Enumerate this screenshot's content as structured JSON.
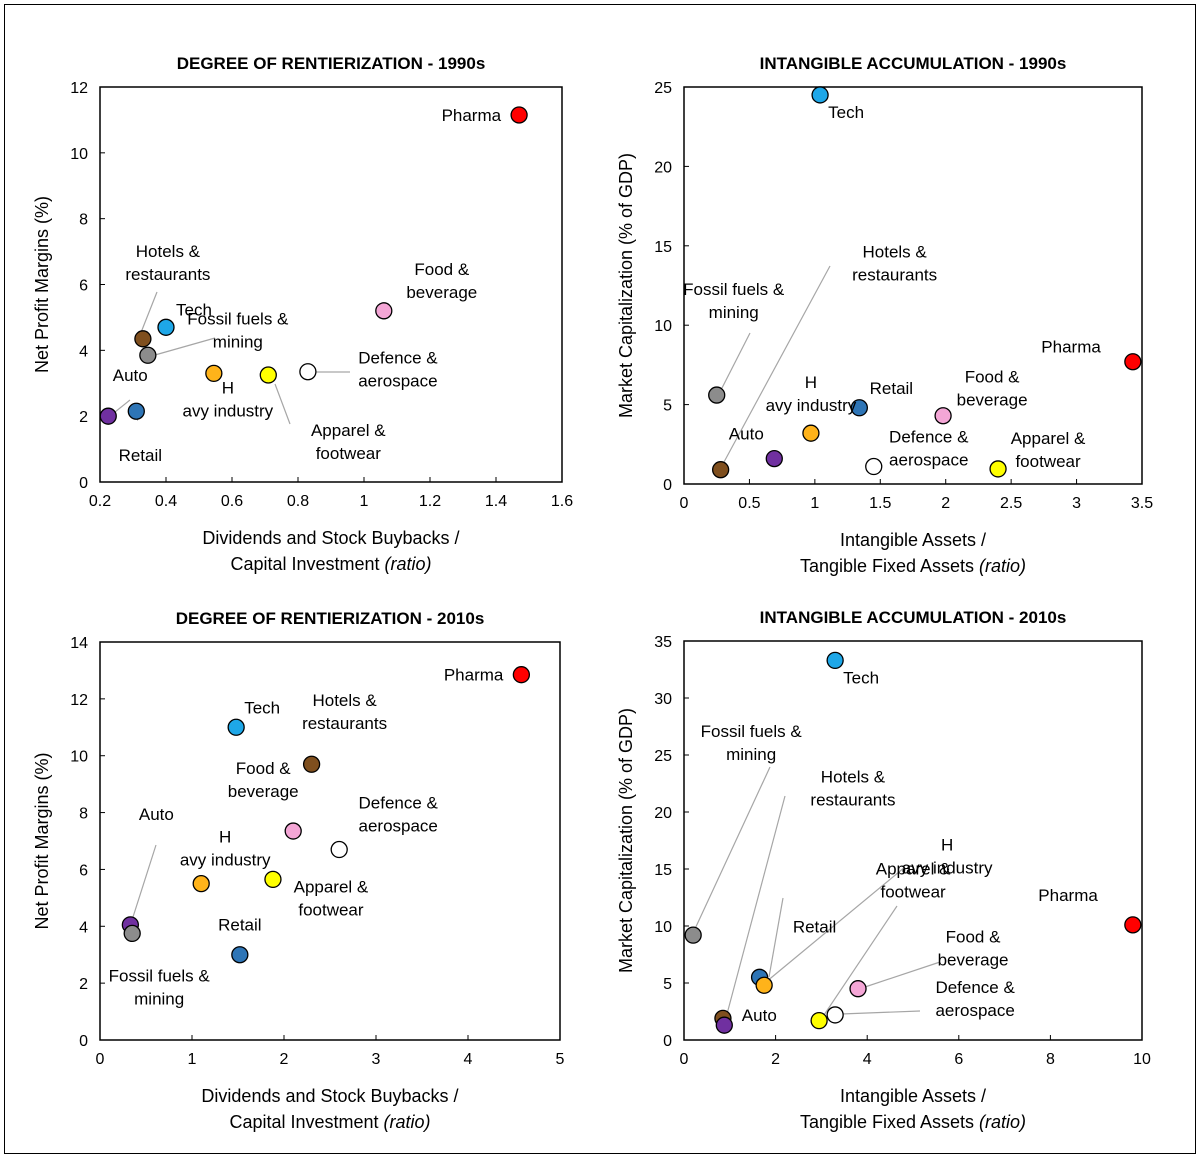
{
  "colors": {
    "pharma": "#ff0000",
    "tech": "#1ea7e8",
    "hotels": "#7f4f1e",
    "fossil": "#8c8c8c",
    "auto": "#7030a0",
    "retail": "#2e75b6",
    "heavy": "#ffb31a",
    "apparel": "#ffff00",
    "food": "#f4a6d6",
    "defence": "#ffffff"
  },
  "chart_data": [
    {
      "type": "scatter",
      "title": "DEGREE OF RENTIERIZATION - 1990s",
      "xlabel": "Dividends and Stock Buybacks /",
      "xlabel2": "Capital Investment",
      "xlabel_suffix": "(ratio)",
      "ylabel": "Net Profit Margins (%)",
      "xlim": [
        0.2,
        1.6
      ],
      "ylim": [
        0,
        12
      ],
      "xticks": [
        "0.2",
        "0.4",
        "0.6",
        "0.8",
        "1",
        "1.2",
        "1.4",
        "1.6"
      ],
      "yticks": [
        "0",
        "2",
        "4",
        "6",
        "8",
        "10",
        "12"
      ],
      "grid": false,
      "points": [
        {
          "label": "Pharma",
          "color_key": "pharma",
          "x": 1.47,
          "y": 11.15
        },
        {
          "label": "Food & beverage",
          "color_key": "food",
          "x": 1.06,
          "y": 5.2
        },
        {
          "label": "Tech",
          "color_key": "tech",
          "x": 0.4,
          "y": 4.7
        },
        {
          "label": "Hotels & restaurants",
          "color_key": "hotels",
          "x": 0.33,
          "y": 4.35
        },
        {
          "label": "Fossil fuels & mining",
          "color_key": "fossil",
          "x": 0.345,
          "y": 3.85
        },
        {
          "label": "Defence & aerospace",
          "color_key": "defence",
          "x": 0.83,
          "y": 3.35
        },
        {
          "label": "Heavy industry",
          "color_key": "heavy",
          "x": 0.545,
          "y": 3.3
        },
        {
          "label": "Apparel & footwear",
          "color_key": "apparel",
          "x": 0.71,
          "y": 3.25
        },
        {
          "label": "Retail",
          "color_key": "retail",
          "x": 0.31,
          "y": 2.15
        },
        {
          "label": "Auto",
          "color_key": "auto",
          "x": 0.225,
          "y": 2.0
        }
      ]
    },
    {
      "type": "scatter",
      "title": "INTANGIBLE ACCUMULATION - 1990s",
      "xlabel": "Intangible Assets /",
      "xlabel2": "Tangible Fixed Assets",
      "xlabel_suffix": "(ratio)",
      "ylabel": "Market Capitalization (% of GDP)",
      "xlim": [
        0,
        3.5
      ],
      "ylim": [
        0,
        25
      ],
      "xticks": [
        "0",
        "0.5",
        "1",
        "1.5",
        "2",
        "2.5",
        "3",
        "3.5"
      ],
      "yticks": [
        "0",
        "5",
        "10",
        "15",
        "20",
        "25"
      ],
      "grid": false,
      "points": [
        {
          "label": "Tech",
          "color_key": "tech",
          "x": 1.04,
          "y": 24.5
        },
        {
          "label": "Pharma",
          "color_key": "pharma",
          "x": 3.43,
          "y": 7.7
        },
        {
          "label": "Fossil fuels & mining",
          "color_key": "fossil",
          "x": 0.25,
          "y": 5.6
        },
        {
          "label": "Retail",
          "color_key": "retail",
          "x": 1.34,
          "y": 4.8
        },
        {
          "label": "Food & beverage",
          "color_key": "food",
          "x": 1.98,
          "y": 4.3
        },
        {
          "label": "Heavy industry",
          "color_key": "heavy",
          "x": 0.97,
          "y": 3.2
        },
        {
          "label": "Auto",
          "color_key": "auto",
          "x": 0.69,
          "y": 1.6
        },
        {
          "label": "Defence & aerospace",
          "color_key": "defence",
          "x": 1.45,
          "y": 1.1
        },
        {
          "label": "Apparel & footwear",
          "color_key": "apparel",
          "x": 2.4,
          "y": 0.95
        },
        {
          "label": "Hotels & restaurants",
          "color_key": "hotels",
          "x": 0.28,
          "y": 0.9
        }
      ]
    },
    {
      "type": "scatter",
      "title": "DEGREE OF RENTIERIZATION - 2010s",
      "xlabel": "Dividends and Stock Buybacks /",
      "xlabel2": "Capital Investment",
      "xlabel_suffix": "(ratio)",
      "ylabel": "Net Profit Margins (%)",
      "xlim": [
        0,
        5
      ],
      "ylim": [
        0,
        14
      ],
      "xticks": [
        "0",
        "1",
        "2",
        "3",
        "4",
        "5"
      ],
      "yticks": [
        "0",
        "2",
        "4",
        "6",
        "8",
        "10",
        "12",
        "14"
      ],
      "grid": false,
      "points": [
        {
          "label": "Pharma",
          "color_key": "pharma",
          "x": 4.58,
          "y": 12.85
        },
        {
          "label": "Tech",
          "color_key": "tech",
          "x": 1.48,
          "y": 11.0
        },
        {
          "label": "Hotels & restaurants",
          "color_key": "hotels",
          "x": 2.3,
          "y": 9.7
        },
        {
          "label": "Food & beverage",
          "color_key": "food",
          "x": 2.1,
          "y": 7.35
        },
        {
          "label": "Defence & aerospace",
          "color_key": "defence",
          "x": 2.6,
          "y": 6.7
        },
        {
          "label": "Apparel & footwear",
          "color_key": "apparel",
          "x": 1.88,
          "y": 5.65
        },
        {
          "label": "Heavy industry",
          "color_key": "heavy",
          "x": 1.1,
          "y": 5.5
        },
        {
          "label": "Auto",
          "color_key": "auto",
          "x": 0.33,
          "y": 4.05
        },
        {
          "label": "Fossil fuels & mining",
          "color_key": "fossil",
          "x": 0.35,
          "y": 3.75
        },
        {
          "label": "Retail",
          "color_key": "retail",
          "x": 1.52,
          "y": 3.0
        }
      ]
    },
    {
      "type": "scatter",
      "title": "INTANGIBLE ACCUMULATION - 2010s",
      "xlabel": "Intangible Assets /",
      "xlabel2": "Tangible Fixed Assets",
      "xlabel_suffix": "(ratio)",
      "ylabel": "Market Capitalization (% of GDP)",
      "xlim": [
        0,
        10
      ],
      "ylim": [
        0,
        35
      ],
      "xticks": [
        "0",
        "2",
        "4",
        "6",
        "8",
        "10"
      ],
      "yticks": [
        "0",
        "5",
        "10",
        "15",
        "20",
        "25",
        "30",
        "35"
      ],
      "grid": false,
      "points": [
        {
          "label": "Tech",
          "color_key": "tech",
          "x": 3.3,
          "y": 33.3
        },
        {
          "label": "Pharma",
          "color_key": "pharma",
          "x": 9.8,
          "y": 10.1
        },
        {
          "label": "Fossil fuels & mining",
          "color_key": "fossil",
          "x": 0.2,
          "y": 9.2
        },
        {
          "label": "Retail",
          "color_key": "retail",
          "x": 1.65,
          "y": 5.5
        },
        {
          "label": "Heavy industry",
          "color_key": "heavy",
          "x": 1.75,
          "y": 4.8
        },
        {
          "label": "Food & beverage",
          "color_key": "food",
          "x": 3.8,
          "y": 4.5
        },
        {
          "label": "Defence & aerospace",
          "color_key": "defence",
          "x": 3.3,
          "y": 2.2
        },
        {
          "label": "Hotels & restaurants",
          "color_key": "hotels",
          "x": 0.85,
          "y": 1.9
        },
        {
          "label": "Apparel & footwear",
          "color_key": "apparel",
          "x": 2.95,
          "y": 1.7
        },
        {
          "label": "Auto",
          "color_key": "auto",
          "x": 0.88,
          "y": 1.3
        }
      ]
    }
  ]
}
